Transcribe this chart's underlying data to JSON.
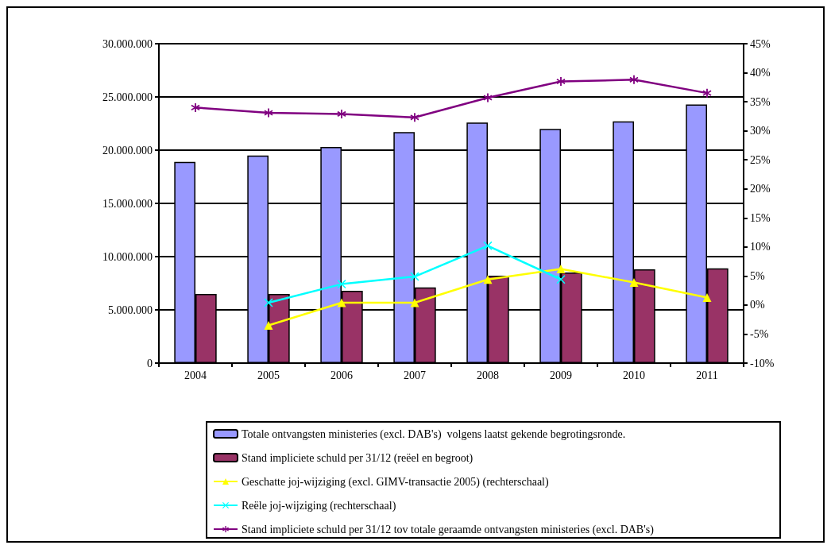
{
  "chart_data": {
    "type": "bar",
    "categories": [
      "2004",
      "2005",
      "2006",
      "2007",
      "2008",
      "2009",
      "2010",
      "2011"
    ],
    "series": [
      {
        "name": "Totale ontvangsten ministeries (excl. DAB's)  volgens laatst gekende begrotingsronde.",
        "color": "#9999ff",
        "values": [
          18900000,
          19500000,
          20300000,
          21700000,
          22600000,
          22000000,
          22700000,
          24300000
        ]
      },
      {
        "name": "Stand impliciete schuld per 31/12 (reëel en begroot)",
        "color": "#993366",
        "values": [
          6500000,
          6500000,
          6800000,
          7100000,
          8200000,
          8500000,
          8800000,
          8900000
        ]
      },
      {
        "name": "Geschatte joj-wijziging (excl. GIMV-transactie 2005) (rechterschaal)",
        "type": "line",
        "axis": "y2",
        "marker": "triangle",
        "color": "#ffff00",
        "values": [
          null,
          -3.5,
          0.4,
          0.4,
          4.4,
          6.2,
          3.9,
          1.3
        ]
      },
      {
        "name": "Reële joj-wijziging (rechterschaal)",
        "type": "line",
        "axis": "y2",
        "marker": "cross",
        "color": "#00ffff",
        "values": [
          null,
          0.4,
          3.6,
          4.9,
          10.2,
          4.4,
          null,
          null
        ]
      },
      {
        "name": "Stand impliciete schuld per 31/12 tov totale geraamde ontvangsten ministeries (excl. DAB's)",
        "type": "line",
        "axis": "y2",
        "marker": "star",
        "color": "#800080",
        "values": [
          34.0,
          33.1,
          32.9,
          32.3,
          35.7,
          38.5,
          38.8,
          36.5
        ]
      }
    ],
    "ylim": [
      0,
      30000000
    ],
    "yticks": [
      {
        "value": 0,
        "label": "0"
      },
      {
        "value": 5000000,
        "label": "5.000.000"
      },
      {
        "value": 10000000,
        "label": "10.000.000"
      },
      {
        "value": 15000000,
        "label": "15.000.000"
      },
      {
        "value": 20000000,
        "label": "20.000.000"
      },
      {
        "value": 25000000,
        "label": "25.000.000"
      },
      {
        "value": 30000000,
        "label": "30.000.000"
      }
    ],
    "y2lim": [
      -10,
      45
    ],
    "y2ticks": [
      {
        "value": -10,
        "label": "-10%"
      },
      {
        "value": -5,
        "label": "-5%"
      },
      {
        "value": 0,
        "label": "0%"
      },
      {
        "value": 5,
        "label": "5%"
      },
      {
        "value": 10,
        "label": "10%"
      },
      {
        "value": 15,
        "label": "15%"
      },
      {
        "value": 20,
        "label": "20%"
      },
      {
        "value": 25,
        "label": "25%"
      },
      {
        "value": 30,
        "label": "30%"
      },
      {
        "value": 35,
        "label": "35%"
      },
      {
        "value": 40,
        "label": "40%"
      },
      {
        "value": 45,
        "label": "45%"
      }
    ],
    "grid": "y",
    "legend": "bottom",
    "line_style": "solid"
  }
}
